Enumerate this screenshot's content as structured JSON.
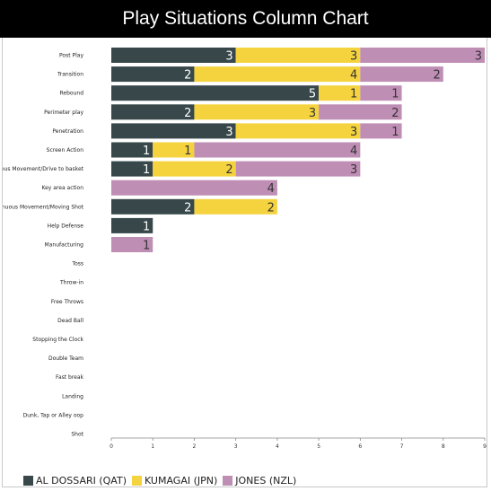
{
  "title": "Play Situations Column Chart",
  "chart_data": {
    "type": "bar",
    "orientation": "horizontal",
    "stacked": true,
    "title": "Play Situations Column Chart",
    "xlabel": "",
    "ylabel": "",
    "xlim": [
      0,
      9
    ],
    "x_ticks": [
      "0",
      "1",
      "2",
      "3",
      "4",
      "5",
      "6",
      "7",
      "8",
      "9"
    ],
    "categories": [
      "Post Play",
      "Transition",
      "Rebound",
      "Perimeter play",
      "Penetration",
      "Screen Action",
      "Continuous Movement/Drive to basket",
      "Key area action",
      "Continuous Movement/Moving Shot",
      "Help Defense",
      "Manufacturing",
      "Toss",
      "Throw-in",
      "Free Throws",
      "Dead Ball",
      "Stopping the Clock",
      "Double Team",
      "Fast break",
      "Landing",
      "Dunk, Tap or Alley oop",
      "Shot"
    ],
    "series": [
      {
        "name": "AL DOSSARI (QAT)",
        "color": "#37474a",
        "values": [
          3,
          2,
          5,
          2,
          3,
          1,
          1,
          0,
          2,
          1,
          0,
          0,
          0,
          0,
          0,
          0,
          0,
          0,
          0,
          0,
          0
        ]
      },
      {
        "name": "KUMAGAI (JPN)",
        "color": "#f5d33f",
        "values": [
          3,
          4,
          1,
          3,
          3,
          1,
          2,
          0,
          2,
          0,
          0,
          0,
          0,
          0,
          0,
          0,
          0,
          0,
          0,
          0,
          0
        ]
      },
      {
        "name": "JONES (NZL)",
        "color": "#bf8eb5",
        "values": [
          3,
          2,
          1,
          2,
          1,
          4,
          3,
          4,
          0,
          0,
          1,
          0,
          0,
          0,
          0,
          0,
          0,
          0,
          0,
          0,
          0
        ]
      }
    ],
    "grid": false,
    "legend": "bottom-left"
  }
}
